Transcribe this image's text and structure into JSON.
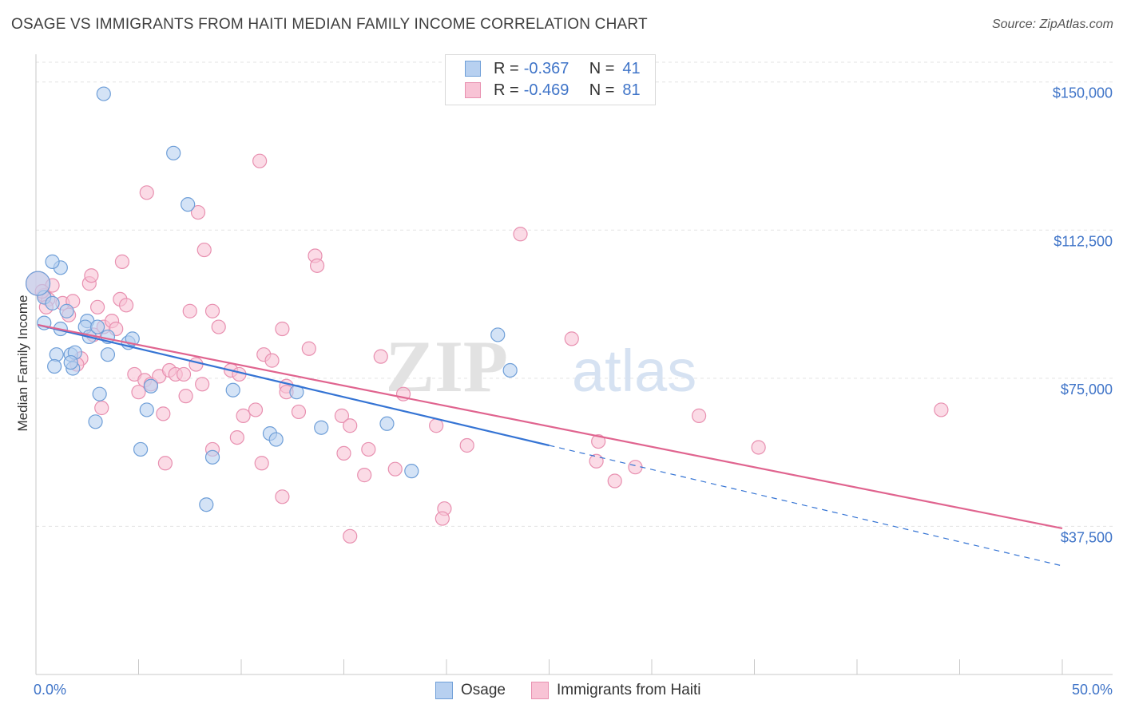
{
  "title": "OSAGE VS IMMIGRANTS FROM HAITI MEDIAN FAMILY INCOME CORRELATION CHART",
  "source": "Source: ZipAtlas.com",
  "watermark": {
    "zip": "ZIP",
    "atlas": "atlas"
  },
  "legend": {
    "osage": {
      "r_label": "R =",
      "r_value": "-0.367",
      "n_label": "N =",
      "n_value": "41"
    },
    "haiti": {
      "r_label": "R =",
      "r_value": "-0.469",
      "n_label": "N =",
      "n_value": "81"
    }
  },
  "colors": {
    "osage_fill": "#b7d0f0",
    "osage_stroke": "#6f9fd8",
    "osage_line": "#3574d4",
    "haiti_fill": "#f8c3d5",
    "haiti_stroke": "#e890b0",
    "haiti_line": "#e0648f",
    "tick_label": "#3f74c8",
    "grid": "#e3e3e3"
  },
  "chart_data": {
    "type": "scatter",
    "xlabel": "",
    "ylabel": "Median Family Income",
    "xlim": [
      0,
      50
    ],
    "ylim": [
      0,
      155000
    ],
    "x_tick_labels": [
      "0.0%",
      "50.0%"
    ],
    "y_ticks": [
      37500,
      75000,
      112500,
      150000
    ],
    "y_tick_labels": [
      "$37,500",
      "$75,000",
      "$112,500",
      "$150,000"
    ],
    "series": [
      {
        "name": "Osage",
        "points": [
          [
            0.4,
            95500
          ],
          [
            0.8,
            94000
          ],
          [
            0.4,
            89000
          ],
          [
            1.2,
            103000
          ],
          [
            0.8,
            104500
          ],
          [
            1.5,
            92000
          ],
          [
            1.2,
            87500
          ],
          [
            2.5,
            89500
          ],
          [
            2.4,
            88000
          ],
          [
            1.0,
            81000
          ],
          [
            1.7,
            81000
          ],
          [
            1.9,
            81500
          ],
          [
            1.8,
            77500
          ],
          [
            0.9,
            78000
          ],
          [
            2.6,
            85500
          ],
          [
            3.0,
            88000
          ],
          [
            3.5,
            85500
          ],
          [
            3.5,
            81000
          ],
          [
            4.5,
            84000
          ],
          [
            4.7,
            85000
          ],
          [
            3.1,
            71000
          ],
          [
            2.9,
            64000
          ],
          [
            5.6,
            73000
          ],
          [
            5.4,
            67000
          ],
          [
            5.1,
            57000
          ],
          [
            3.3,
            147000
          ],
          [
            6.7,
            132000
          ],
          [
            7.4,
            119000
          ],
          [
            8.3,
            43000
          ],
          [
            8.6,
            55000
          ],
          [
            9.6,
            72000
          ],
          [
            11.4,
            61000
          ],
          [
            11.7,
            59500
          ],
          [
            12.7,
            71500
          ],
          [
            13.9,
            62500
          ],
          [
            17.1,
            63500
          ],
          [
            18.3,
            51500
          ],
          [
            22.5,
            86000
          ],
          [
            23.1,
            77000
          ],
          [
            0.1,
            99000
          ],
          [
            1.7,
            79000
          ]
        ]
      },
      {
        "name": "Immigrants from Haiti",
        "points": [
          [
            0.1,
            99000
          ],
          [
            0.4,
            96000
          ],
          [
            0.6,
            95000
          ],
          [
            0.8,
            98500
          ],
          [
            0.5,
            93000
          ],
          [
            1.3,
            94000
          ],
          [
            1.6,
            91000
          ],
          [
            1.8,
            94500
          ],
          [
            2.2,
            80000
          ],
          [
            2.0,
            78500
          ],
          [
            2.6,
            99000
          ],
          [
            2.7,
            101000
          ],
          [
            2.8,
            86000
          ],
          [
            3.0,
            93000
          ],
          [
            3.3,
            88000
          ],
          [
            3.7,
            89500
          ],
          [
            3.9,
            87500
          ],
          [
            4.1,
            95000
          ],
          [
            4.4,
            93500
          ],
          [
            4.2,
            104500
          ],
          [
            3.2,
            67500
          ],
          [
            4.8,
            76000
          ],
          [
            5.0,
            71500
          ],
          [
            5.3,
            74500
          ],
          [
            5.6,
            73500
          ],
          [
            6.0,
            75500
          ],
          [
            6.2,
            66000
          ],
          [
            6.5,
            77000
          ],
          [
            6.8,
            76000
          ],
          [
            7.2,
            76000
          ],
          [
            7.3,
            70500
          ],
          [
            7.5,
            92000
          ],
          [
            6.3,
            53500
          ],
          [
            7.8,
            78500
          ],
          [
            8.1,
            73500
          ],
          [
            8.6,
            92000
          ],
          [
            8.9,
            88000
          ],
          [
            8.6,
            57000
          ],
          [
            9.5,
            77000
          ],
          [
            9.8,
            60000
          ],
          [
            9.9,
            76000
          ],
          [
            10.1,
            65500
          ],
          [
            10.7,
            67000
          ],
          [
            11.1,
            81000
          ],
          [
            11.5,
            79500
          ],
          [
            12.0,
            87500
          ],
          [
            12.2,
            73000
          ],
          [
            12.2,
            71500
          ],
          [
            11.0,
            53500
          ],
          [
            12.8,
            66500
          ],
          [
            12.0,
            45000
          ],
          [
            13.3,
            82500
          ],
          [
            13.6,
            106000
          ],
          [
            13.7,
            103500
          ],
          [
            14.9,
            65500
          ],
          [
            15.0,
            56000
          ],
          [
            15.3,
            63000
          ],
          [
            16.0,
            50500
          ],
          [
            16.2,
            57000
          ],
          [
            16.8,
            80500
          ],
          [
            17.5,
            52000
          ],
          [
            17.9,
            71000
          ],
          [
            19.5,
            63000
          ],
          [
            19.9,
            42000
          ],
          [
            19.8,
            39500
          ],
          [
            21.0,
            58000
          ],
          [
            23.6,
            111500
          ],
          [
            26.1,
            85000
          ],
          [
            27.3,
            54000
          ],
          [
            27.4,
            59000
          ],
          [
            28.2,
            49000
          ],
          [
            29.2,
            52500
          ],
          [
            32.3,
            65500
          ],
          [
            35.2,
            57500
          ],
          [
            44.1,
            67000
          ],
          [
            5.4,
            122000
          ],
          [
            7.9,
            117000
          ],
          [
            8.2,
            107500
          ],
          [
            10.9,
            130000
          ],
          [
            15.3,
            35000
          ],
          [
            0.3,
            97000
          ]
        ]
      }
    ],
    "trend_lines": [
      {
        "series": "Osage",
        "solid": [
          [
            0.1,
            88500
          ],
          [
            25.0,
            58000
          ]
        ],
        "dashed": [
          [
            25.0,
            58000
          ],
          [
            50.0,
            27500
          ]
        ]
      },
      {
        "series": "Immigrants from Haiti",
        "solid": [
          [
            0.1,
            88500
          ],
          [
            50.0,
            37000
          ]
        ]
      }
    ]
  },
  "bottom_legend": {
    "osage": "Osage",
    "haiti": "Immigrants from Haiti"
  }
}
